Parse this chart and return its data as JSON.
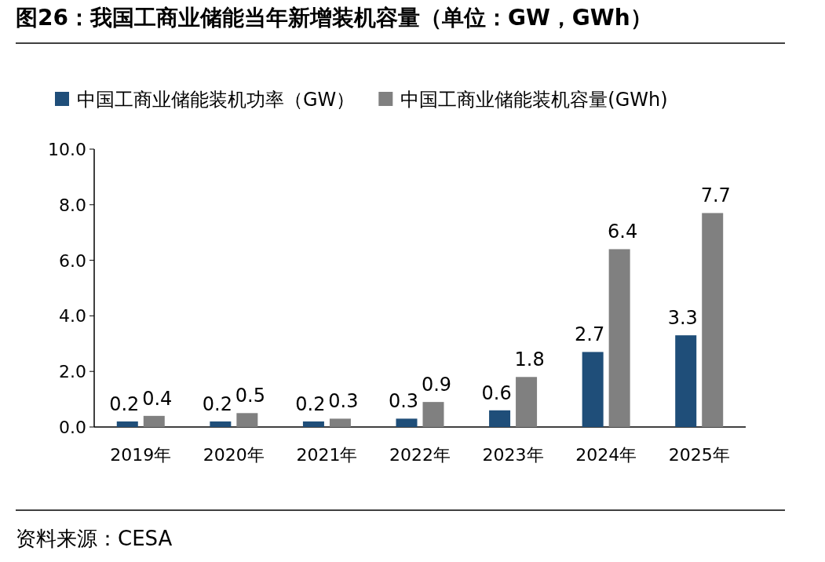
{
  "chart_data": {
    "type": "bar",
    "title": "图26：我国工商业储能当年新增装机容量（单位：GW，GWh）",
    "categories": [
      "2019年",
      "2020年",
      "2021年",
      "2022年",
      "2023年",
      "2024年",
      "2025年"
    ],
    "series": [
      {
        "name": "中国工商业储能装机功率（GW）",
        "color": "#1f4e79",
        "values": [
          0.2,
          0.2,
          0.2,
          0.3,
          0.6,
          2.7,
          3.3
        ]
      },
      {
        "name": "中国工商业储能装机容量(GWh)",
        "color": "#808080",
        "values": [
          0.4,
          0.5,
          0.3,
          0.9,
          1.8,
          6.4,
          7.7
        ]
      }
    ],
    "ylim": [
      0,
      10
    ],
    "yticks": [
      {
        "value": 0,
        "label": "0.0"
      },
      {
        "value": 2,
        "label": "2.0"
      },
      {
        "value": 4,
        "label": "4.0"
      },
      {
        "value": 6,
        "label": "6.0"
      },
      {
        "value": 8,
        "label": "8.0"
      },
      {
        "value": 10,
        "label": "10.0"
      }
    ],
    "legend": "top",
    "data_labels": true,
    "grid": false,
    "annotations": [
      "资料来源：CESA"
    ]
  }
}
